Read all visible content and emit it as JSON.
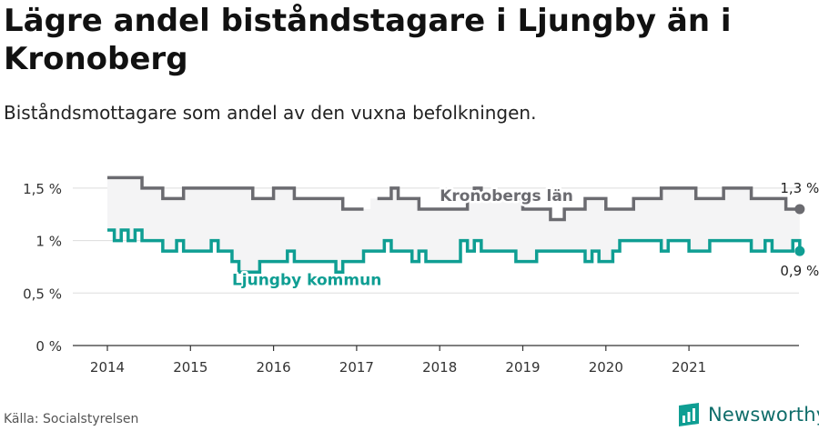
{
  "header": {
    "title": "Lägre andel biståndstagare i Ljungby än i Kronoberg",
    "subtitle": "Biståndsmottagare som andel av den vuxna befolkningen."
  },
  "footer": {
    "source": "Källa: Socialstyrelsen",
    "brand": "Newsworthy",
    "brand_icon": "newsworthy-logo-icon"
  },
  "colors": {
    "kronoberg": "#6b6b70",
    "ljungby": "#0f9e93",
    "band": "#f4f4f5",
    "grid": "#dddddd",
    "axis": "#333333"
  },
  "chart_data": {
    "type": "line",
    "title": "Lägre andel biståndstagare i Ljungby än i Kronoberg",
    "subtitle": "Biståndsmottagare som andel av den vuxna befolkningen.",
    "y_unit": "%",
    "ylim": [
      0,
      1.75
    ],
    "y_ticks": [
      {
        "value": 0,
        "label": "0 %"
      },
      {
        "value": 0.5,
        "label": "0,5 %"
      },
      {
        "value": 1.0,
        "label": "1 %"
      },
      {
        "value": 1.5,
        "label": "1,5 %"
      }
    ],
    "x_ticks": [
      "2014",
      "2015",
      "2016",
      "2017",
      "2018",
      "2019",
      "2020",
      "2021"
    ],
    "x_start_year": 2014,
    "periods_per_year": 12,
    "grid": true,
    "legend": "inline labels",
    "series": [
      {
        "name": "Kronobergs län",
        "end_label": "1,3 %",
        "values": [
          1.6,
          1.6,
          1.6,
          1.6,
          1.6,
          1.5,
          1.5,
          1.5,
          1.4,
          1.4,
          1.4,
          1.5,
          1.5,
          1.5,
          1.5,
          1.5,
          1.5,
          1.5,
          1.5,
          1.5,
          1.5,
          1.4,
          1.4,
          1.4,
          1.5,
          1.5,
          1.5,
          1.4,
          1.4,
          1.4,
          1.4,
          1.4,
          1.4,
          1.4,
          1.3,
          1.3,
          1.3,
          null,
          null,
          1.4,
          1.4,
          1.5,
          1.4,
          1.4,
          1.4,
          1.3,
          1.3,
          1.3,
          1.3,
          1.3,
          1.3,
          1.3,
          1.4,
          1.5,
          1.4,
          1.4,
          1.4,
          1.4,
          1.4,
          1.4,
          1.3,
          1.3,
          1.3,
          1.3,
          1.2,
          1.2,
          1.3,
          1.3,
          1.3,
          1.4,
          1.4,
          1.4,
          1.3,
          1.3,
          1.3,
          1.3,
          1.4,
          1.4,
          1.4,
          1.4,
          1.5,
          1.5,
          1.5,
          1.5,
          1.5,
          1.4,
          1.4,
          1.4,
          1.4,
          1.5,
          1.5,
          1.5,
          1.5,
          1.4,
          1.4,
          1.4,
          1.4,
          1.4,
          1.3,
          1.3,
          1.3
        ]
      },
      {
        "name": "Ljungby kommun",
        "end_label": "0,9 %",
        "values": [
          1.1,
          1.0,
          1.1,
          1.0,
          1.1,
          1.0,
          1.0,
          1.0,
          0.9,
          0.9,
          1.0,
          0.9,
          0.9,
          0.9,
          0.9,
          1.0,
          0.9,
          0.9,
          0.8,
          0.7,
          0.7,
          0.7,
          0.8,
          0.8,
          0.8,
          0.8,
          0.9,
          0.8,
          0.8,
          0.8,
          0.8,
          0.8,
          0.8,
          0.7,
          0.8,
          0.8,
          0.8,
          0.9,
          0.9,
          0.9,
          1.0,
          0.9,
          0.9,
          0.9,
          0.8,
          0.9,
          0.8,
          0.8,
          0.8,
          0.8,
          0.8,
          1.0,
          0.9,
          1.0,
          0.9,
          0.9,
          0.9,
          0.9,
          0.9,
          0.8,
          0.8,
          0.8,
          0.9,
          0.9,
          0.9,
          0.9,
          0.9,
          0.9,
          0.9,
          0.8,
          0.9,
          0.8,
          0.8,
          0.9,
          1.0,
          1.0,
          1.0,
          1.0,
          1.0,
          1.0,
          0.9,
          1.0,
          1.0,
          1.0,
          0.9,
          0.9,
          0.9,
          1.0,
          1.0,
          1.0,
          1.0,
          1.0,
          1.0,
          0.9,
          0.9,
          1.0,
          0.9,
          0.9,
          0.9,
          1.0,
          0.9
        ]
      }
    ]
  }
}
